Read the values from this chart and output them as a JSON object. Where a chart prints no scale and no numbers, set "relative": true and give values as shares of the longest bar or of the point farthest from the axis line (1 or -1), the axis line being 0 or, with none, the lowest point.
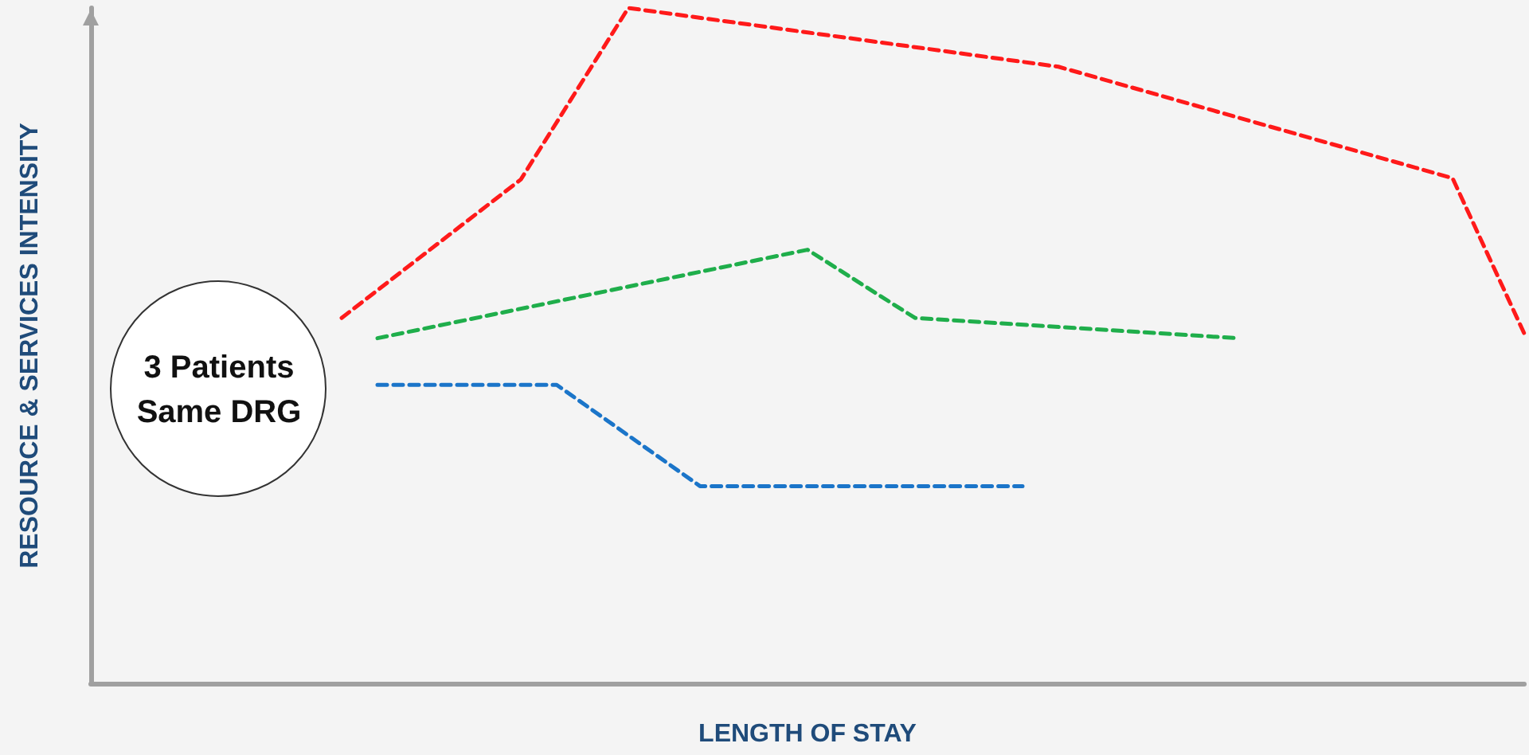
{
  "chart_data": {
    "type": "line",
    "relative": true,
    "xlabel": "LENGTH OF STAY",
    "ylabel": "RESOURCE & SERVICES INTENSITY",
    "line_style": "dashed",
    "marker": "none",
    "grid": false,
    "annotations": [
      "3 Patients Same DRG"
    ],
    "categories": [
      null,
      null,
      null,
      null,
      null,
      null,
      null,
      null,
      null,
      null,
      null,
      null,
      null,
      null,
      null,
      null,
      null,
      null,
      null,
      null,
      null,
      null,
      null,
      null,
      null,
      null,
      null,
      null,
      null,
      null,
      null,
      null,
      null,
      null,
      null,
      null,
      null,
      null,
      null,
      null,
      null
    ],
    "series": [
      {
        "color": "#ff1a1a",
        "values": [
          null,
          null,
          null,
          null,
          null,
          null,
          null,
          0.541,
          null,
          null,
          null,
          null,
          0.746,
          null,
          null,
          1.0,
          null,
          null,
          null,
          null,
          null,
          null,
          null,
          null,
          null,
          null,
          null,
          0.913,
          null,
          null,
          null,
          null,
          null,
          null,
          null,
          null,
          null,
          null,
          0.748,
          null,
          0.518
        ]
      },
      {
        "color": "#1fae4b",
        "values": [
          null,
          null,
          null,
          null,
          null,
          null,
          null,
          null,
          0.511,
          null,
          null,
          null,
          null,
          null,
          null,
          null,
          null,
          null,
          null,
          null,
          0.642,
          null,
          null,
          0.541,
          null,
          null,
          null,
          null,
          null,
          null,
          null,
          null,
          0.511,
          null,
          null,
          null,
          null,
          null,
          null,
          null,
          null
        ]
      },
      {
        "color": "#1b75c9",
        "values": [
          null,
          null,
          null,
          null,
          null,
          null,
          null,
          null,
          0.442,
          null,
          null,
          null,
          null,
          0.442,
          null,
          null,
          null,
          0.292,
          null,
          null,
          null,
          null,
          null,
          null,
          null,
          null,
          0.292,
          null,
          null,
          null,
          null,
          null,
          null,
          null,
          null,
          null,
          null,
          null,
          null,
          null,
          null
        ]
      }
    ]
  }
}
